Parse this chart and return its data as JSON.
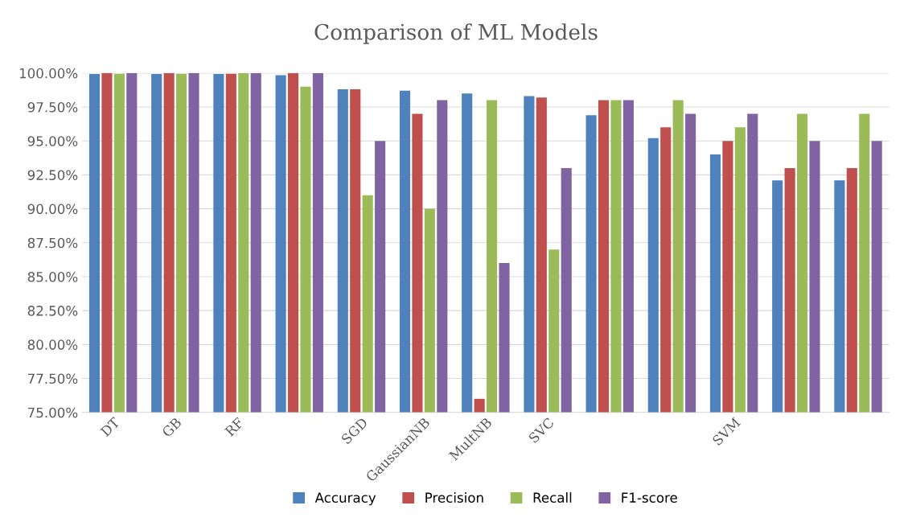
{
  "chart_data": {
    "type": "bar",
    "title": "Comparison of ML Models",
    "categories": [
      "DT",
      "GB",
      "RF",
      null,
      "SGD",
      "GaussianNB",
      "MultNB",
      "SVC",
      null,
      null,
      "SVM",
      null,
      null
    ],
    "series": [
      {
        "name": "Accuracy",
        "color": "#4f81bd",
        "values": [
          99.93,
          99.93,
          99.93,
          99.85,
          98.8,
          98.7,
          98.5,
          98.3,
          96.9,
          95.2,
          94.0,
          92.1,
          92.1
        ]
      },
      {
        "name": "Precision",
        "color": "#c0504d",
        "values": [
          100,
          100,
          99.95,
          100,
          98.8,
          97.0,
          76.0,
          98.2,
          98.0,
          96.0,
          95.0,
          93.0,
          93.0
        ]
      },
      {
        "name": "Recall",
        "color": "#9bbb59",
        "values": [
          99.95,
          99.95,
          100,
          99.0,
          91.0,
          90.0,
          98.0,
          87.0,
          98.0,
          98.0,
          96.0,
          97.0,
          97.0
        ]
      },
      {
        "name": "F1-score",
        "color": "#8064a2",
        "values": [
          100,
          100,
          100,
          100,
          95.0,
          98.0,
          86.0,
          93.0,
          98.0,
          97.0,
          97.0,
          95.0,
          95.0
        ]
      }
    ],
    "ylim": [
      75,
      100
    ],
    "yticks": [
      {
        "value": 75,
        "label": "75.00%"
      },
      {
        "value": 77.5,
        "label": "77.50%"
      },
      {
        "value": 80,
        "label": "80.00%"
      },
      {
        "value": 82.5,
        "label": "82.50%"
      },
      {
        "value": 85,
        "label": "85.00%"
      },
      {
        "value": 87.5,
        "label": "87.50%"
      },
      {
        "value": 90,
        "label": "90.00%"
      },
      {
        "value": 92.5,
        "label": "92.50%"
      },
      {
        "value": 95,
        "label": "95.00%"
      },
      {
        "value": 97.5,
        "label": "97.50%"
      },
      {
        "value": 100,
        "label": "100.00%"
      }
    ],
    "grid": "y",
    "legend": "bottom"
  }
}
